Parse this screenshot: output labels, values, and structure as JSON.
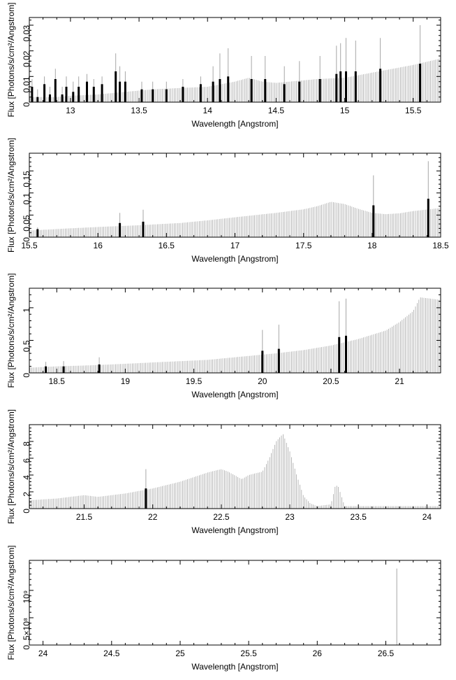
{
  "shared": {
    "ylabel": "Flux [Photons/s/cm²/Angstrom]",
    "xlabel": "Wavelength [Angstrom]",
    "colors": {
      "errorbar": "#a6a6a6",
      "flux": "#000000",
      "frame": "#000000"
    }
  },
  "chart_data": [
    {
      "type": "bar",
      "xlabel": "Wavelength [Angstrom]",
      "ylabel": "Flux [Photons/s/cm²/Angstrom]",
      "xlim": [
        12.7,
        15.7
      ],
      "ylim": [
        0,
        0.033
      ],
      "xticks": [
        13,
        13.5,
        14,
        14.5,
        15,
        15.5
      ],
      "xtick_labels": [
        "13",
        "13.5",
        "14",
        "14.5",
        "15",
        "15.5"
      ],
      "yticks": [
        0,
        0.01,
        0.02,
        0.03
      ],
      "ytick_labels": [
        "0",
        "0.01",
        "0.02",
        "0.03"
      ],
      "error_envelope": {
        "x": [
          12.7,
          12.8,
          12.9,
          13.0,
          13.2,
          13.4,
          13.6,
          13.8,
          14.0,
          14.2,
          14.3,
          14.4,
          14.5,
          14.6,
          14.8,
          15.0,
          15.1,
          15.2,
          15.3,
          15.4,
          15.5,
          15.7
        ],
        "y": [
          0.002,
          0.002,
          0.002,
          0.0025,
          0.003,
          0.004,
          0.005,
          0.0055,
          0.006,
          0.008,
          0.0095,
          0.008,
          0.0075,
          0.008,
          0.009,
          0.0095,
          0.0105,
          0.0115,
          0.0125,
          0.0135,
          0.0145,
          0.017
        ]
      },
      "lines": [
        {
          "x": 12.72,
          "flux": 0.006,
          "err": 0.009
        },
        {
          "x": 12.76,
          "flux": 0.002,
          "err": 0.005
        },
        {
          "x": 12.81,
          "flux": 0.007,
          "err": 0.01
        },
        {
          "x": 12.85,
          "flux": 0.003,
          "err": 0.006
        },
        {
          "x": 12.89,
          "flux": 0.009,
          "err": 0.013
        },
        {
          "x": 12.94,
          "flux": 0.003,
          "err": 0.006
        },
        {
          "x": 12.97,
          "flux": 0.006,
          "err": 0.01
        },
        {
          "x": 13.02,
          "flux": 0.004,
          "err": 0.008
        },
        {
          "x": 13.06,
          "flux": 0.006,
          "err": 0.01
        },
        {
          "x": 13.12,
          "flux": 0.008,
          "err": 0.011
        },
        {
          "x": 13.17,
          "flux": 0.006,
          "err": 0.009
        },
        {
          "x": 13.23,
          "flux": 0.007,
          "err": 0.01
        },
        {
          "x": 13.33,
          "flux": 0.012,
          "err": 0.019
        },
        {
          "x": 13.36,
          "flux": 0.008,
          "err": 0.014
        },
        {
          "x": 13.4,
          "flux": 0.008,
          "err": 0.012
        },
        {
          "x": 13.52,
          "flux": 0.005,
          "err": 0.008
        },
        {
          "x": 13.6,
          "flux": 0.005,
          "err": 0.008
        },
        {
          "x": 13.7,
          "flux": 0.005,
          "err": 0.008
        },
        {
          "x": 13.82,
          "flux": 0.006,
          "err": 0.009
        },
        {
          "x": 13.95,
          "flux": 0.007,
          "err": 0.01
        },
        {
          "x": 14.04,
          "flux": 0.008,
          "err": 0.014
        },
        {
          "x": 14.09,
          "flux": 0.009,
          "err": 0.019
        },
        {
          "x": 14.15,
          "flux": 0.01,
          "err": 0.021
        },
        {
          "x": 14.32,
          "flux": 0.009,
          "err": 0.018
        },
        {
          "x": 14.42,
          "flux": 0.009,
          "err": 0.018
        },
        {
          "x": 14.56,
          "flux": 0.007,
          "err": 0.014
        },
        {
          "x": 14.67,
          "flux": 0.008,
          "err": 0.016
        },
        {
          "x": 14.82,
          "flux": 0.009,
          "err": 0.018
        },
        {
          "x": 14.94,
          "flux": 0.011,
          "err": 0.022
        },
        {
          "x": 14.97,
          "flux": 0.012,
          "err": 0.023
        },
        {
          "x": 15.01,
          "flux": 0.012,
          "err": 0.025
        },
        {
          "x": 15.08,
          "flux": 0.012,
          "err": 0.024
        },
        {
          "x": 15.26,
          "flux": 0.013,
          "err": 0.025
        },
        {
          "x": 15.55,
          "flux": 0.015,
          "err": 0.03
        }
      ]
    },
    {
      "type": "bar",
      "xlabel": "Wavelength [Angstrom]",
      "ylabel": "Flux [Photons/s/cm²/Angstrom]",
      "xlim": [
        15.5,
        18.5
      ],
      "ylim": [
        0,
        0.19
      ],
      "xticks": [
        15.5,
        16,
        16.5,
        17,
        17.5,
        18,
        18.5
      ],
      "xtick_labels": [
        "15.5",
        "16",
        "16.5",
        "17",
        "17.5",
        "18",
        "18.5"
      ],
      "yticks": [
        0,
        0.05,
        0.1,
        0.15
      ],
      "ytick_labels": [
        "0",
        "0.05",
        "0.1",
        "0.15"
      ],
      "error_envelope": {
        "x": [
          15.5,
          15.8,
          16.0,
          16.3,
          16.6,
          16.8,
          17.0,
          17.3,
          17.5,
          17.6,
          17.7,
          17.8,
          17.9,
          18.0,
          18.1,
          18.2,
          18.3,
          18.5
        ],
        "y": [
          0.015,
          0.02,
          0.023,
          0.027,
          0.032,
          0.038,
          0.045,
          0.055,
          0.063,
          0.07,
          0.08,
          0.075,
          0.064,
          0.055,
          0.052,
          0.054,
          0.059,
          0.066
        ]
      },
      "lines": [
        {
          "x": 15.56,
          "flux": 0.018,
          "err": 0.022
        },
        {
          "x": 16.16,
          "flux": 0.032,
          "err": 0.055
        },
        {
          "x": 16.33,
          "flux": 0.035,
          "err": 0.062
        },
        {
          "x": 18.01,
          "flux": 0.072,
          "err": 0.14
        },
        {
          "x": 18.41,
          "flux": 0.087,
          "err": 0.172
        }
      ]
    },
    {
      "type": "bar",
      "xlabel": "Wavelength [Angstrom]",
      "ylabel": "Flux [Photons/s/cm²/Angstrom]",
      "xlim": [
        18.3,
        21.3
      ],
      "ylim": [
        0,
        1.3
      ],
      "xticks": [
        18.5,
        19,
        19.5,
        20,
        20.5,
        21
      ],
      "xtick_labels": [
        "18.5",
        "19",
        "19.5",
        "20",
        "20.5",
        "21"
      ],
      "yticks": [
        0,
        0.5,
        1
      ],
      "ytick_labels": [
        "0",
        "0.5",
        "1"
      ],
      "error_envelope": {
        "x": [
          18.3,
          18.5,
          18.8,
          19.0,
          19.3,
          19.6,
          19.9,
          20.1,
          20.3,
          20.5,
          20.7,
          20.9,
          21.0,
          21.1,
          21.15,
          21.3
        ],
        "y": [
          0.08,
          0.1,
          0.12,
          0.14,
          0.17,
          0.2,
          0.26,
          0.3,
          0.35,
          0.42,
          0.52,
          0.65,
          0.78,
          0.95,
          1.16,
          1.12
        ]
      },
      "lines": [
        {
          "x": 18.42,
          "flux": 0.1,
          "err": 0.17
        },
        {
          "x": 18.55,
          "flux": 0.1,
          "err": 0.18
        },
        {
          "x": 18.81,
          "flux": 0.13,
          "err": 0.24
        },
        {
          "x": 20.0,
          "flux": 0.34,
          "err": 0.66
        },
        {
          "x": 20.12,
          "flux": 0.37,
          "err": 0.74
        },
        {
          "x": 20.56,
          "flux": 0.55,
          "err": 1.1
        },
        {
          "x": 20.61,
          "flux": 0.57,
          "err": 1.14
        }
      ]
    },
    {
      "type": "bar",
      "xlabel": "Wavelength [Angstrom]",
      "ylabel": "Flux [Photons/s/cm²/Angstrom]",
      "xlim": [
        21.1,
        24.1
      ],
      "ylim": [
        0,
        10
      ],
      "xticks": [
        21.5,
        22,
        22.5,
        23,
        23.5,
        24
      ],
      "xtick_labels": [
        "21.5",
        "22",
        "22.5",
        "23",
        "23.5",
        "24"
      ],
      "yticks": [
        0,
        2,
        4,
        6,
        8
      ],
      "ytick_labels": [
        "0",
        "2",
        "4",
        "6",
        "8"
      ],
      "error_envelope": {
        "x": [
          21.1,
          21.3,
          21.5,
          21.6,
          21.8,
          22.0,
          22.2,
          22.4,
          22.5,
          22.55,
          22.65,
          22.7,
          22.8,
          22.85,
          22.9,
          22.95,
          23.0,
          23.05,
          23.1,
          23.15,
          23.2,
          23.3,
          23.33,
          23.35,
          23.38,
          23.4,
          24.1
        ],
        "y": [
          1.0,
          1.2,
          1.6,
          1.4,
          1.8,
          2.4,
          3.2,
          4.3,
          4.7,
          4.4,
          3.5,
          4.0,
          4.4,
          6.0,
          8.0,
          8.9,
          6.8,
          4.0,
          1.5,
          0.6,
          0.3,
          0.5,
          2.6,
          2.8,
          1.3,
          0.3,
          0.3
        ]
      },
      "lines": [
        {
          "x": 21.95,
          "flux": 2.4,
          "err": 4.7
        }
      ]
    },
    {
      "type": "bar",
      "xlabel": "Wavelength [Angstrom]",
      "ylabel": "Flux [Photons/s/cm²/Angstrom]",
      "xlim": [
        23.9,
        26.9
      ],
      "ylim": [
        0,
        1550000000.0
      ],
      "xticks": [
        24,
        24.5,
        25,
        25.5,
        26,
        26.5
      ],
      "xtick_labels": [
        "24",
        "24.5",
        "25",
        "25.5",
        "26",
        "26.5"
      ],
      "yticks": [
        0,
        500000000,
        1000000000
      ],
      "ytick_labels": [
        "0",
        "5×10⁸",
        "10⁹"
      ],
      "error_envelope": {
        "x": [
          23.9,
          26.9
        ],
        "y": [
          0,
          0
        ]
      },
      "lines": [
        {
          "x": 26.58,
          "flux": 0,
          "err": 1400000000.0
        }
      ]
    }
  ]
}
